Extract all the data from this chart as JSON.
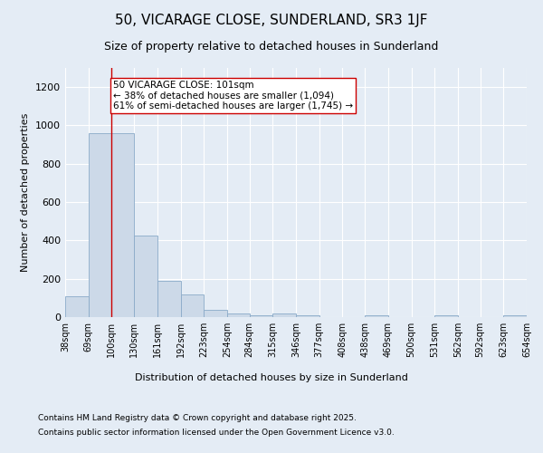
{
  "title": "50, VICARAGE CLOSE, SUNDERLAND, SR3 1JF",
  "subtitle": "Size of property relative to detached houses in Sunderland",
  "xlabel": "Distribution of detached houses by size in Sunderland",
  "ylabel": "Number of detached properties",
  "annotation_line1": "50 VICARAGE CLOSE: 101sqm",
  "annotation_line2": "← 38% of detached houses are smaller (1,094)",
  "annotation_line3": "61% of semi-detached houses are larger (1,745) →",
  "footer_line1": "Contains HM Land Registry data © Crown copyright and database right 2025.",
  "footer_line2": "Contains public sector information licensed under the Open Government Licence v3.0.",
  "bar_color": "#ccd9e8",
  "bar_edge_color": "#8aaac8",
  "background_color": "#e4ecf5",
  "vline_x": 100,
  "vline_color": "#cc0000",
  "bin_edges": [
    38,
    69,
    100,
    130,
    161,
    192,
    223,
    254,
    284,
    315,
    346,
    377,
    408,
    438,
    469,
    500,
    531,
    562,
    592,
    623,
    654
  ],
  "bar_heights": [
    110,
    960,
    960,
    425,
    190,
    120,
    40,
    20,
    10,
    20,
    10,
    0,
    0,
    10,
    0,
    0,
    10,
    0,
    0,
    10
  ],
  "ylim": [
    0,
    1300
  ],
  "yticks": [
    0,
    200,
    400,
    600,
    800,
    1000,
    1200
  ],
  "annotation_box_color": "#ffffff",
  "annotation_box_edge": "#cc0000",
  "annotation_fontsize": 7.5,
  "title_fontsize": 11,
  "subtitle_fontsize": 9,
  "tick_label_fontsize": 7,
  "axis_label_fontsize": 8,
  "footer_fontsize": 6.5
}
